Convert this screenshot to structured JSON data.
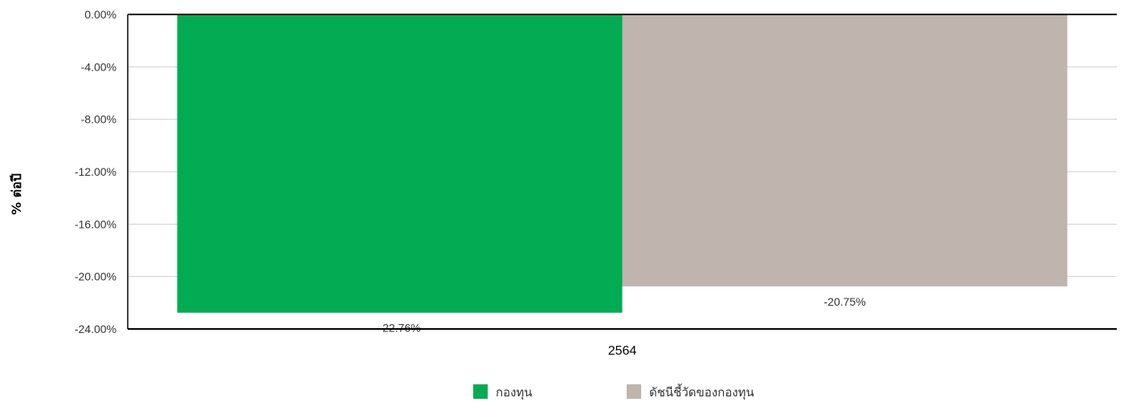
{
  "chart_data": {
    "type": "bar",
    "categories": [
      "2564"
    ],
    "series": [
      {
        "name": "กองทุน",
        "values": [
          -22.76
        ],
        "color": "#03ac52",
        "label": "-22.76%"
      },
      {
        "name": "ดัชนีชี้วัดของกองทุน",
        "values": [
          -20.75
        ],
        "color": "#bfb4ae",
        "label": "-20.75%"
      }
    ],
    "title": "",
    "xlabel": "",
    "ylabel": "% ต่อปี",
    "ylim": [
      -24,
      0
    ],
    "yticks": [
      0,
      -4,
      -8,
      -12,
      -16,
      -20,
      -24
    ],
    "ytick_labels": [
      "0.00%",
      "-4.00%",
      "-8.00%",
      "-12.00%",
      "-16.00%",
      "-20.00%",
      "-24.00%"
    ],
    "grid": true,
    "legend_position": "bottom"
  }
}
